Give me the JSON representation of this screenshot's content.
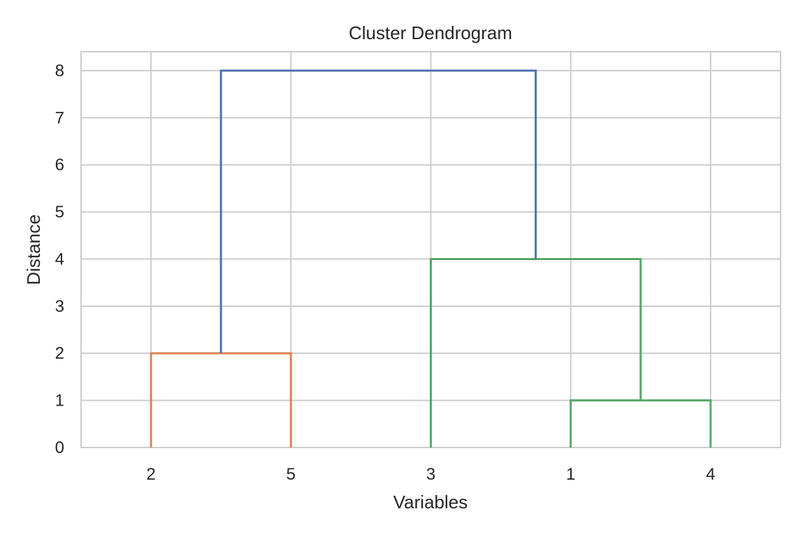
{
  "chart_data": {
    "type": "dendrogram",
    "title": "Cluster Dendrogram",
    "xlabel": "Variables",
    "ylabel": "Distance",
    "leaf_order": [
      "2",
      "5",
      "3",
      "1",
      "4"
    ],
    "yticks": [
      0,
      1,
      2,
      3,
      4,
      5,
      6,
      7,
      8
    ],
    "ylim": [
      0,
      8.4
    ],
    "grid": true,
    "merges": [
      {
        "left": "1",
        "right": "4",
        "height": 1,
        "color": "#55a868"
      },
      {
        "left": "2",
        "right": "5",
        "height": 2,
        "color": "#dd8452"
      },
      {
        "left": "3",
        "right": "(1,4)",
        "height": 4,
        "color": "#55a868"
      },
      {
        "left": "(2,5)",
        "right": "(3,(1,4))",
        "height": 8,
        "color": "#4c72b0"
      }
    ]
  },
  "colors": {
    "grid": "#cccccc",
    "frame": "#cccccc",
    "text": "#262626"
  }
}
